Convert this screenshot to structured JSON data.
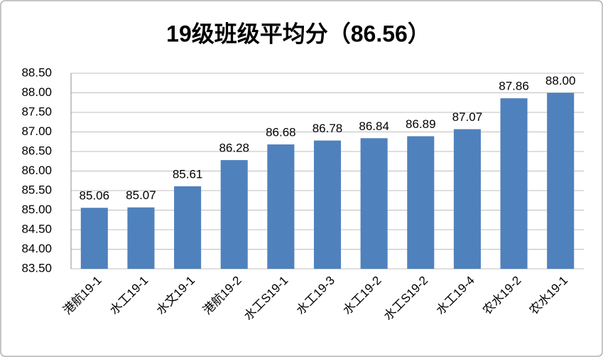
{
  "chart_data": {
    "type": "bar",
    "title": "19级班级平均分（86.56）",
    "categories": [
      "港航19-1",
      "水工19-1",
      "水文19-1",
      "港航19-2",
      "水工S19-1",
      "水工19-3",
      "水工19-2",
      "水工S19-2",
      "水工19-4",
      "农水19-2",
      "农水19-1"
    ],
    "values": [
      85.06,
      85.07,
      85.61,
      86.28,
      86.68,
      86.78,
      86.84,
      86.89,
      87.07,
      87.86,
      88.0
    ],
    "value_labels": [
      "85.06",
      "85.07",
      "85.61",
      "86.28",
      "86.68",
      "86.78",
      "86.84",
      "86.89",
      "87.07",
      "87.86",
      "88.00"
    ],
    "color": "#4f81bd",
    "ylim": [
      83.5,
      88.5
    ],
    "yticks": [
      {
        "value": 83.5,
        "label": "83.50"
      },
      {
        "value": 84,
        "label": "84.00"
      },
      {
        "value": 84.5,
        "label": "84.50"
      },
      {
        "value": 85,
        "label": "85.00"
      },
      {
        "value": 85.5,
        "label": "85.50"
      },
      {
        "value": 86,
        "label": "86.00"
      },
      {
        "value": 86.5,
        "label": "86.50"
      },
      {
        "value": 87,
        "label": "87.00"
      },
      {
        "value": 87.5,
        "label": "87.50"
      },
      {
        "value": 88,
        "label": "88.00"
      },
      {
        "value": 88.5,
        "label": "88.50"
      }
    ],
    "grid": true
  }
}
